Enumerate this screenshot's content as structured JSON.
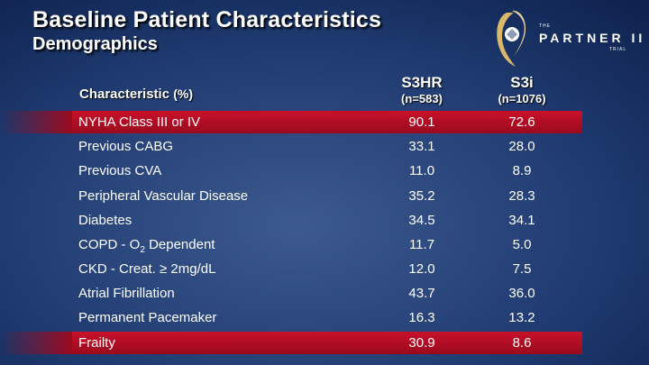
{
  "header": {
    "title": "Baseline Patient Characteristics",
    "subtitle": "Demographics"
  },
  "logo": {
    "the": "THE",
    "name": "PARTNER II",
    "trial": "TRIAL",
    "icon": "heart-valve-icon"
  },
  "table": {
    "col0": "Characteristic",
    "col0_unit": "(%)",
    "col1": {
      "name": "S3HR",
      "n": "(n=583)"
    },
    "col2": {
      "name": "S3i",
      "n": "(n=1076)"
    },
    "rows": [
      {
        "label": "NYHA Class III or IV",
        "v1": "90.1",
        "v2": "72.6",
        "highlight": true
      },
      {
        "label": "Previous CABG",
        "v1": "33.1",
        "v2": "28.0"
      },
      {
        "label": "Previous CVA",
        "v1": "11.0",
        "v2": "8.9"
      },
      {
        "label": "Peripheral Vascular Disease",
        "v1": "35.2",
        "v2": "28.3"
      },
      {
        "label": "Diabetes",
        "v1": "34.5",
        "v2": "34.1"
      },
      {
        "label_pre": "COPD - O",
        "label_sub": "2",
        "label_post": " Dependent",
        "v1": "11.7",
        "v2": "5.0"
      },
      {
        "label": "CKD - Creat. ≥ 2mg/dL",
        "v1": "12.0",
        "v2": "7.5"
      },
      {
        "label": "Atrial Fibrillation",
        "v1": "43.7",
        "v2": "36.0"
      },
      {
        "label": "Permanent Pacemaker",
        "v1": "16.3",
        "v2": "13.2"
      },
      {
        "label": "Frailty",
        "v1": "30.9",
        "v2": "8.6",
        "highlight": true
      }
    ]
  },
  "colors": {
    "background": "#1e3a70",
    "highlight_row": "#c8112a",
    "text": "#ffffff"
  }
}
